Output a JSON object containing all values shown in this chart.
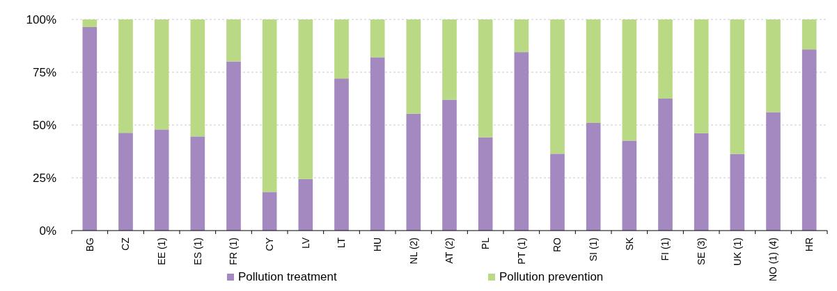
{
  "chart_data": {
    "type": "bar",
    "stacked": true,
    "categories": [
      "BG",
      "CZ",
      "EE (1)",
      "ES (1)",
      "FR (1)",
      "CY",
      "LV",
      "LT",
      "HU",
      "NL (2)",
      "AT (2)",
      "PL",
      "PT (1)",
      "RO",
      "SI (1)",
      "SK",
      "FI (1)",
      "SE (3)",
      "UK (1)",
      "NO (1) (4)",
      "HR"
    ],
    "series": [
      {
        "name": "Pollution treatment",
        "color": "#a389bf",
        "values": [
          96.4,
          46.3,
          47.9,
          44.6,
          80.1,
          18.3,
          24.4,
          72,
          82.1,
          55.4,
          62,
          44.2,
          84.5,
          36.4,
          51,
          42.6,
          62.5,
          46.1,
          36.3,
          56.1,
          85.8
        ]
      },
      {
        "name": "Pollution prevention",
        "color": "#b9d984",
        "values": [
          3.6,
          53.7,
          52.1,
          55.4,
          19.9,
          81.7,
          75.6,
          28,
          17.9,
          44.6,
          38,
          55.8,
          15.5,
          63.6,
          49,
          57.4,
          37.5,
          53.9,
          63.7,
          43.9,
          14.2
        ]
      }
    ],
    "ylim": [
      0,
      100
    ],
    "yticks": [
      {
        "value": 0,
        "label": "0%"
      },
      {
        "value": 25,
        "label": "25%"
      },
      {
        "value": 50,
        "label": "50%"
      },
      {
        "value": 75,
        "label": "75%"
      },
      {
        "value": 100,
        "label": "100%"
      }
    ],
    "grid": "y",
    "legend": "bottom"
  }
}
